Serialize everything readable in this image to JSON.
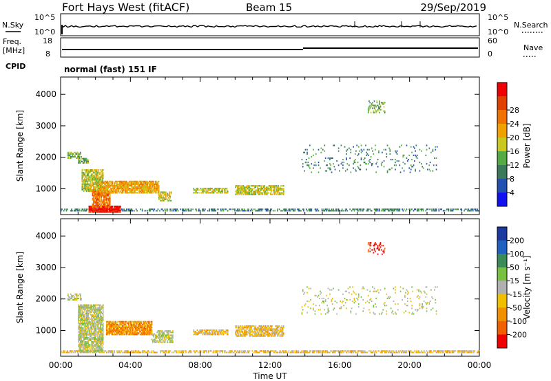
{
  "header": {
    "station": "Fort Hays West (fitACF)",
    "beam": "Beam 15",
    "date": "29/Sep/2019"
  },
  "strip_labels": {
    "nsky": "N.Sky",
    "nsky_ticks": [
      "10^5",
      "10^0"
    ],
    "nsearch": "N.Search",
    "nsearch_ticks": [
      "10^5",
      "10^0"
    ],
    "freq_line1": "Freq.",
    "freq_line2": "[MHz]",
    "freq_ticks": [
      "18",
      "8"
    ],
    "nave": "Nave",
    "nave_ticks": [
      "60",
      "0"
    ],
    "cpid": "CPID",
    "cpid_value": "normal (fast) 151 IF"
  },
  "time_axis": {
    "label": "Time UT",
    "ticks": [
      "00:00",
      "04:00",
      "08:00",
      "12:00",
      "16:00",
      "20:00",
      "00:00"
    ],
    "tick_hours": [
      0,
      4,
      8,
      12,
      16,
      20,
      24
    ]
  },
  "colorbars": {
    "power": {
      "label": "Power [dB]",
      "ticks": [
        "4",
        "8",
        "12",
        "16",
        "20",
        "24",
        "28"
      ],
      "colors": [
        "#1010f0",
        "#2050b0",
        "#3a7a5a",
        "#55aa44",
        "#c8c820",
        "#f0a000",
        "#f07000",
        "#e04000",
        "#f00000"
      ]
    },
    "velocity": {
      "label": "Velocity [m s⁻¹]",
      "ticks": [
        "200",
        "100",
        "50",
        "15",
        "-15",
        "-50",
        "-100",
        "-200"
      ],
      "colors": [
        "#1a3aa0",
        "#2060c0",
        "#3a8a5a",
        "#78c040",
        "#b0b0b0",
        "#f0c000",
        "#f09000",
        "#f06000",
        "#f00000"
      ]
    }
  },
  "chart_data": [
    {
      "type": "heatmap",
      "title": "Power",
      "xlabel": "Time UT",
      "ylabel": "Slant Range [km]",
      "xlim": [
        0,
        24
      ],
      "ylim": [
        180,
        4550
      ],
      "yticks": [
        1000,
        2000,
        3000,
        4000
      ],
      "colorbar_label": "Power [dB]",
      "regions": [
        {
          "t0": 0.0,
          "t1": 24.0,
          "r0": 280,
          "r1": 360,
          "level": 2,
          "density": 0.55
        },
        {
          "t0": 1.6,
          "t1": 3.4,
          "r0": 240,
          "r1": 430,
          "level": 8,
          "density": 0.95
        },
        {
          "t0": 0.4,
          "t1": 1.2,
          "r0": 1950,
          "r1": 2150,
          "level": 3,
          "density": 0.6
        },
        {
          "t0": 1.0,
          "t1": 1.6,
          "r0": 1800,
          "r1": 1950,
          "level": 3,
          "density": 0.7
        },
        {
          "t0": 1.2,
          "t1": 2.4,
          "r0": 900,
          "r1": 1600,
          "level": 4,
          "density": 0.75
        },
        {
          "t0": 1.8,
          "t1": 2.8,
          "r0": 400,
          "r1": 900,
          "level": 6,
          "density": 0.8
        },
        {
          "t0": 2.2,
          "t1": 5.6,
          "r0": 850,
          "r1": 1250,
          "level": 5,
          "density": 0.85
        },
        {
          "t0": 5.6,
          "t1": 6.3,
          "r0": 600,
          "r1": 900,
          "level": 4,
          "density": 0.6
        },
        {
          "t0": 7.6,
          "t1": 9.6,
          "r0": 850,
          "r1": 1000,
          "level": 4,
          "density": 0.7
        },
        {
          "t0": 10.0,
          "t1": 12.8,
          "r0": 800,
          "r1": 1100,
          "level": 4,
          "density": 0.75
        },
        {
          "t0": 13.8,
          "t1": 21.6,
          "r0": 1500,
          "r1": 2400,
          "level": 2,
          "density": 0.08
        },
        {
          "t0": 17.6,
          "t1": 18.6,
          "r0": 3400,
          "r1": 3800,
          "level": 3,
          "density": 0.3
        }
      ]
    },
    {
      "type": "heatmap",
      "title": "Velocity",
      "xlabel": "Time UT",
      "ylabel": "Slant Range [km]",
      "xlim": [
        0,
        24
      ],
      "ylim": [
        180,
        4550
      ],
      "yticks": [
        1000,
        2000,
        3000,
        4000
      ],
      "colorbar_label": "Velocity [m s⁻¹]",
      "regions": [
        {
          "t0": 0.0,
          "t1": 24.0,
          "r0": 280,
          "r1": 360,
          "level": 5,
          "density": 0.6
        },
        {
          "t0": 0.4,
          "t1": 1.2,
          "r0": 1950,
          "r1": 2150,
          "level": 4,
          "density": 0.6
        },
        {
          "t0": 1.0,
          "t1": 2.4,
          "r0": 300,
          "r1": 1800,
          "level": 4,
          "density": 0.75
        },
        {
          "t0": 2.6,
          "t1": 5.2,
          "r0": 850,
          "r1": 1300,
          "level": 6,
          "density": 0.85
        },
        {
          "t0": 5.2,
          "t1": 6.4,
          "r0": 600,
          "r1": 1000,
          "level": 4,
          "density": 0.6
        },
        {
          "t0": 7.6,
          "t1": 9.6,
          "r0": 850,
          "r1": 1000,
          "level": 5,
          "density": 0.7
        },
        {
          "t0": 10.0,
          "t1": 12.8,
          "r0": 800,
          "r1": 1150,
          "level": 5,
          "density": 0.7
        },
        {
          "t0": 13.8,
          "t1": 21.6,
          "r0": 1500,
          "r1": 2400,
          "level": 4,
          "density": 0.08
        },
        {
          "t0": 17.6,
          "t1": 18.6,
          "r0": 3400,
          "r1": 3800,
          "level": 8,
          "density": 0.3
        }
      ]
    }
  ]
}
